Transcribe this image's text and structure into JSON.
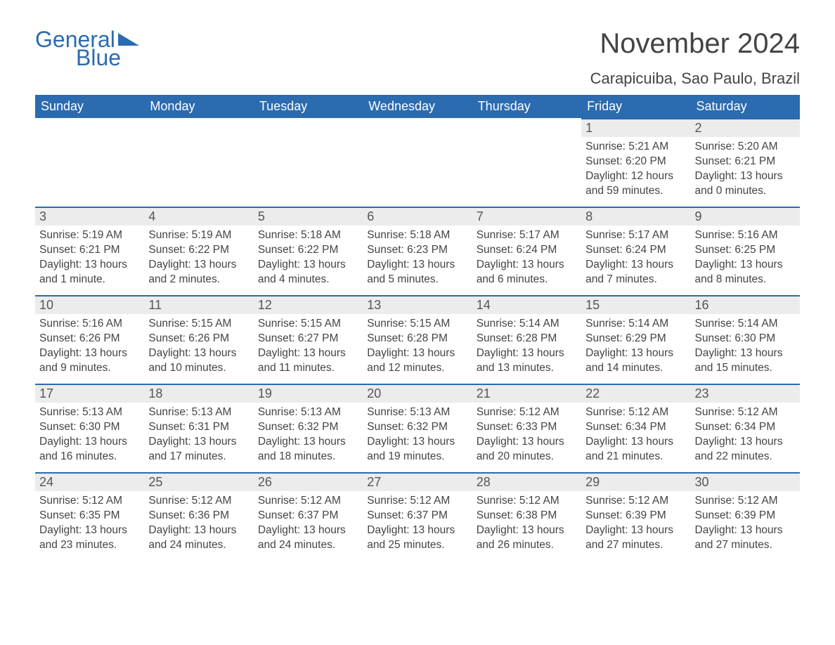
{
  "logo": {
    "word1": "General",
    "word2": "Blue"
  },
  "title": "November 2024",
  "subtitle": "Carapicuiba, Sao Paulo, Brazil",
  "colors": {
    "brand": "#2b6bb0",
    "header_text": "#ffffff",
    "daynum_bg": "#ececec",
    "text": "#444444",
    "background": "#ffffff"
  },
  "typography": {
    "title_fontsize": 40,
    "subtitle_fontsize": 22,
    "header_fontsize": 18,
    "daynum_fontsize": 18,
    "body_fontsize": 15.5
  },
  "calendar": {
    "day_headers": [
      "Sunday",
      "Monday",
      "Tuesday",
      "Wednesday",
      "Thursday",
      "Friday",
      "Saturday"
    ],
    "weeks": [
      [
        {
          "empty": true
        },
        {
          "empty": true
        },
        {
          "empty": true
        },
        {
          "empty": true
        },
        {
          "empty": true
        },
        {
          "day": "1",
          "sunrise": "5:21 AM",
          "sunset": "6:20 PM",
          "daylight": "12 hours and 59 minutes."
        },
        {
          "day": "2",
          "sunrise": "5:20 AM",
          "sunset": "6:21 PM",
          "daylight": "13 hours and 0 minutes."
        }
      ],
      [
        {
          "day": "3",
          "sunrise": "5:19 AM",
          "sunset": "6:21 PM",
          "daylight": "13 hours and 1 minute."
        },
        {
          "day": "4",
          "sunrise": "5:19 AM",
          "sunset": "6:22 PM",
          "daylight": "13 hours and 2 minutes."
        },
        {
          "day": "5",
          "sunrise": "5:18 AM",
          "sunset": "6:22 PM",
          "daylight": "13 hours and 4 minutes."
        },
        {
          "day": "6",
          "sunrise": "5:18 AM",
          "sunset": "6:23 PM",
          "daylight": "13 hours and 5 minutes."
        },
        {
          "day": "7",
          "sunrise": "5:17 AM",
          "sunset": "6:24 PM",
          "daylight": "13 hours and 6 minutes."
        },
        {
          "day": "8",
          "sunrise": "5:17 AM",
          "sunset": "6:24 PM",
          "daylight": "13 hours and 7 minutes."
        },
        {
          "day": "9",
          "sunrise": "5:16 AM",
          "sunset": "6:25 PM",
          "daylight": "13 hours and 8 minutes."
        }
      ],
      [
        {
          "day": "10",
          "sunrise": "5:16 AM",
          "sunset": "6:26 PM",
          "daylight": "13 hours and 9 minutes."
        },
        {
          "day": "11",
          "sunrise": "5:15 AM",
          "sunset": "6:26 PM",
          "daylight": "13 hours and 10 minutes."
        },
        {
          "day": "12",
          "sunrise": "5:15 AM",
          "sunset": "6:27 PM",
          "daylight": "13 hours and 11 minutes."
        },
        {
          "day": "13",
          "sunrise": "5:15 AM",
          "sunset": "6:28 PM",
          "daylight": "13 hours and 12 minutes."
        },
        {
          "day": "14",
          "sunrise": "5:14 AM",
          "sunset": "6:28 PM",
          "daylight": "13 hours and 13 minutes."
        },
        {
          "day": "15",
          "sunrise": "5:14 AM",
          "sunset": "6:29 PM",
          "daylight": "13 hours and 14 minutes."
        },
        {
          "day": "16",
          "sunrise": "5:14 AM",
          "sunset": "6:30 PM",
          "daylight": "13 hours and 15 minutes."
        }
      ],
      [
        {
          "day": "17",
          "sunrise": "5:13 AM",
          "sunset": "6:30 PM",
          "daylight": "13 hours and 16 minutes."
        },
        {
          "day": "18",
          "sunrise": "5:13 AM",
          "sunset": "6:31 PM",
          "daylight": "13 hours and 17 minutes."
        },
        {
          "day": "19",
          "sunrise": "5:13 AM",
          "sunset": "6:32 PM",
          "daylight": "13 hours and 18 minutes."
        },
        {
          "day": "20",
          "sunrise": "5:13 AM",
          "sunset": "6:32 PM",
          "daylight": "13 hours and 19 minutes."
        },
        {
          "day": "21",
          "sunrise": "5:12 AM",
          "sunset": "6:33 PM",
          "daylight": "13 hours and 20 minutes."
        },
        {
          "day": "22",
          "sunrise": "5:12 AM",
          "sunset": "6:34 PM",
          "daylight": "13 hours and 21 minutes."
        },
        {
          "day": "23",
          "sunrise": "5:12 AM",
          "sunset": "6:34 PM",
          "daylight": "13 hours and 22 minutes."
        }
      ],
      [
        {
          "day": "24",
          "sunrise": "5:12 AM",
          "sunset": "6:35 PM",
          "daylight": "13 hours and 23 minutes."
        },
        {
          "day": "25",
          "sunrise": "5:12 AM",
          "sunset": "6:36 PM",
          "daylight": "13 hours and 24 minutes."
        },
        {
          "day": "26",
          "sunrise": "5:12 AM",
          "sunset": "6:37 PM",
          "daylight": "13 hours and 24 minutes."
        },
        {
          "day": "27",
          "sunrise": "5:12 AM",
          "sunset": "6:37 PM",
          "daylight": "13 hours and 25 minutes."
        },
        {
          "day": "28",
          "sunrise": "5:12 AM",
          "sunset": "6:38 PM",
          "daylight": "13 hours and 26 minutes."
        },
        {
          "day": "29",
          "sunrise": "5:12 AM",
          "sunset": "6:39 PM",
          "daylight": "13 hours and 27 minutes."
        },
        {
          "day": "30",
          "sunrise": "5:12 AM",
          "sunset": "6:39 PM",
          "daylight": "13 hours and 27 minutes."
        }
      ]
    ]
  },
  "labels": {
    "sunrise": "Sunrise:",
    "sunset": "Sunset:",
    "daylight": "Daylight:"
  }
}
